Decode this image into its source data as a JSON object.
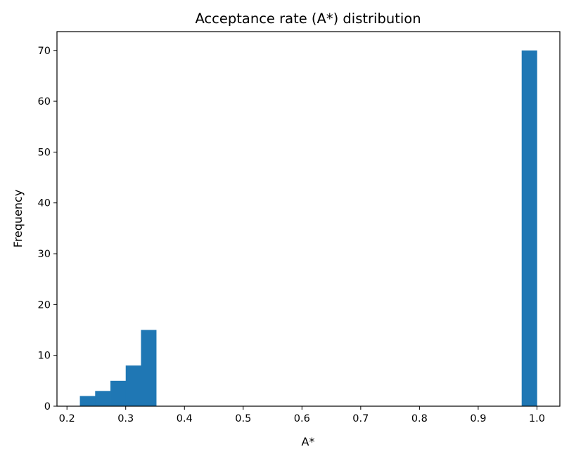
{
  "chart_data": {
    "type": "bar",
    "title": "Acceptance rate (A*) distribution",
    "xlabel": "A*",
    "ylabel": "Frequency",
    "xlim": [
      0.183,
      1.039
    ],
    "ylim": [
      0,
      73.7
    ],
    "grid": false,
    "bar_color": "#1f77b4",
    "bin_edges_note_free": true,
    "bins": [
      {
        "x0": 0.222,
        "x1": 0.248,
        "count": 2
      },
      {
        "x0": 0.248,
        "x1": 0.274,
        "count": 3
      },
      {
        "x0": 0.274,
        "x1": 0.3,
        "count": 5
      },
      {
        "x0": 0.3,
        "x1": 0.326,
        "count": 8
      },
      {
        "x0": 0.326,
        "x1": 0.352,
        "count": 15
      },
      {
        "x0": 0.974,
        "x1": 1.0,
        "count": 70
      }
    ],
    "xticks": [
      "0.2",
      "0.3",
      "0.4",
      "0.5",
      "0.6",
      "0.7",
      "0.8",
      "0.9",
      "1.0"
    ],
    "yticks": [
      "0",
      "10",
      "20",
      "30",
      "40",
      "50",
      "60",
      "70"
    ]
  }
}
